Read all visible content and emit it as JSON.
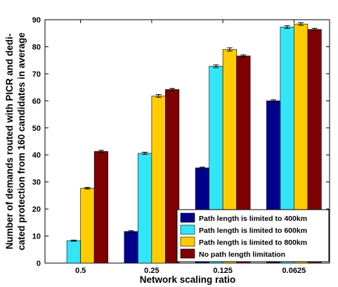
{
  "chart_data": {
    "type": "bar",
    "categories": [
      "0.5",
      "0.25",
      "0.125",
      "0.0625"
    ],
    "series": [
      {
        "name": "Path length is limited to 400km",
        "color": "#00008c",
        "values": [
          0,
          11.7,
          35.2,
          60.0
        ],
        "errors": [
          0,
          0.3,
          0.3,
          0.4
        ]
      },
      {
        "name": "Path length is limited to 600km",
        "color": "#33e6f7",
        "values": [
          8.3,
          40.6,
          72.8,
          87.3
        ],
        "errors": [
          0.2,
          0.4,
          0.5,
          0.5
        ]
      },
      {
        "name": "Path length is limited to 800km",
        "color": "#ffcc00",
        "values": [
          27.7,
          61.8,
          79.0,
          88.4
        ],
        "errors": [
          0.3,
          0.5,
          0.6,
          0.5
        ]
      },
      {
        "name": "No path length limitation",
        "color": "#7f0000",
        "values": [
          41.3,
          64.2,
          76.6,
          86.4
        ],
        "errors": [
          0.4,
          0.4,
          0.4,
          0.4
        ]
      }
    ],
    "xlabel": "Network scaling ratio",
    "ylabel": "Number of demands routed with PICR and dedi-\ncated protection from 160 candidates in average",
    "ylim": [
      0,
      90
    ],
    "yticks": [
      0,
      10,
      20,
      30,
      40,
      50,
      60,
      70,
      80,
      90
    ],
    "grid": false,
    "error_bars": true,
    "legend_position": "bottom-right"
  }
}
